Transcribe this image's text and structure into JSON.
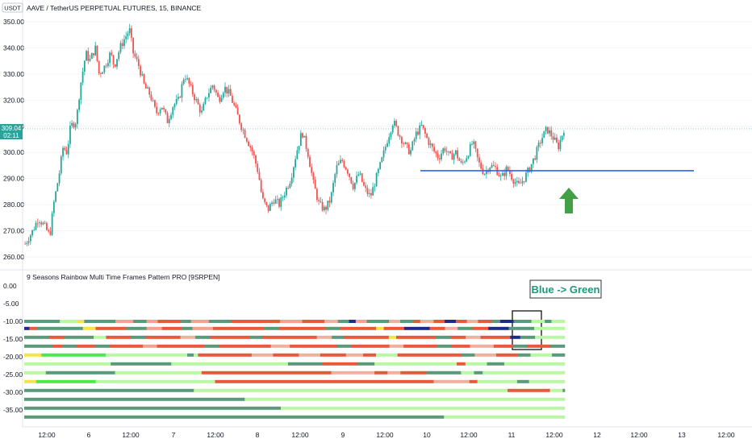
{
  "header": {
    "currency_badge": "USDT",
    "symbol_title": "AAVE / TetherUS PERPETUAL FUTURES, 15, BINANCE"
  },
  "price_tag": {
    "price": "309.04",
    "countdown": "02:11",
    "value": 309.04
  },
  "indicator": {
    "title": "9 Seasons Rainbow Multi Time Frames Pattern PRO [9SRPEN]",
    "callout": "Blue -> Green"
  },
  "annotation": {
    "support_level": 293,
    "arrow": "up-arrow-icon"
  },
  "colors": {
    "up_candle": "#26a69a",
    "down_candle": "#ef5350",
    "support_line": "#2962ff",
    "arrow": "#43a047",
    "callout_text": "#1a9a7c",
    "price_line": "#26a69a",
    "bar_palette": {
      "G": "#7fdd7f",
      "g": "#baf7a5",
      "T": "#5a9a7a",
      "R": "#e8583a",
      "r": "#f5a090",
      "S": "#f0b0a0",
      "N": "#1c2a8a",
      "Y": "#f5e34a",
      "B": "#4de84d"
    }
  },
  "chart_data": [
    {
      "type": "candlestick",
      "title": "AAVE / TetherUS PERPETUAL FUTURES, 15, BINANCE",
      "ylim": [
        255,
        352
      ],
      "y_ticks": [
        "350.00",
        "340.00",
        "330.00",
        "320.00",
        "310.00",
        "300.00",
        "290.00",
        "280.00",
        "270.00",
        "260.00"
      ],
      "x_ticks": [
        "12:00",
        "6",
        "12:00",
        "7",
        "12:00",
        "8",
        "12:00",
        "9",
        "12:00",
        "10",
        "12:00",
        "11",
        "12:00",
        "12",
        "12:00",
        "12:00",
        "13",
        "12:00"
      ],
      "close_path": [
        [
          0,
          265
        ],
        [
          4,
          270
        ],
        [
          7,
          275
        ],
        [
          10,
          272
        ],
        [
          13,
          268
        ],
        [
          15,
          280
        ],
        [
          18,
          292
        ],
        [
          20,
          302
        ],
        [
          22,
          300
        ],
        [
          24,
          310
        ],
        [
          27,
          312
        ],
        [
          29,
          325
        ],
        [
          32,
          338
        ],
        [
          34,
          335
        ],
        [
          37,
          340
        ],
        [
          39,
          330
        ],
        [
          42,
          333
        ],
        [
          45,
          338
        ],
        [
          47,
          333
        ],
        [
          50,
          340
        ],
        [
          52,
          343
        ],
        [
          55,
          347
        ],
        [
          57,
          338
        ],
        [
          60,
          333
        ],
        [
          63,
          325
        ],
        [
          66,
          322
        ],
        [
          69,
          315
        ],
        [
          72,
          318
        ],
        [
          75,
          312
        ],
        [
          78,
          318
        ],
        [
          81,
          320
        ],
        [
          84,
          330
        ],
        [
          87,
          325
        ],
        [
          90,
          320
        ],
        [
          93,
          315
        ],
        [
          96,
          322
        ],
        [
          99,
          326
        ],
        [
          102,
          320
        ],
        [
          105,
          325
        ],
        [
          108,
          322
        ],
        [
          111,
          316
        ],
        [
          114,
          310
        ],
        [
          117,
          305
        ],
        [
          120,
          300
        ],
        [
          123,
          292
        ],
        [
          125,
          282
        ],
        [
          128,
          278
        ],
        [
          131,
          282
        ],
        [
          134,
          280
        ],
        [
          137,
          285
        ],
        [
          140,
          290
        ],
        [
          143,
          300
        ],
        [
          146,
          308
        ],
        [
          149,
          300
        ],
        [
          152,
          288
        ],
        [
          155,
          280
        ],
        [
          158,
          278
        ],
        [
          161,
          282
        ],
        [
          164,
          294
        ],
        [
          167,
          297
        ],
        [
          170,
          293
        ],
        [
          173,
          287
        ],
        [
          176,
          292
        ],
        [
          179,
          286
        ],
        [
          182,
          283
        ],
        [
          185,
          290
        ],
        [
          188,
          297
        ],
        [
          191,
          305
        ],
        [
          194,
          312
        ],
        [
          197,
          307
        ],
        [
          200,
          303
        ],
        [
          203,
          300
        ],
        [
          206,
          307
        ],
        [
          209,
          310
        ],
        [
          212,
          305
        ],
        [
          215,
          301
        ],
        [
          218,
          298
        ],
        [
          221,
          302
        ],
        [
          224,
          298
        ],
        [
          227,
          300
        ],
        [
          230,
          295
        ],
        [
          233,
          299
        ],
        [
          236,
          304
        ],
        [
          239,
          296
        ],
        [
          242,
          292
        ],
        [
          245,
          295
        ],
        [
          248,
          294
        ],
        [
          251,
          290
        ],
        [
          254,
          294
        ],
        [
          257,
          290
        ],
        [
          260,
          287
        ],
        [
          263,
          290
        ],
        [
          266,
          294
        ],
        [
          269,
          299
        ],
        [
          272,
          305
        ],
        [
          275,
          309
        ],
        [
          278,
          306
        ],
        [
          281,
          302
        ],
        [
          284,
          309
        ]
      ],
      "close_path_x_range": [
        0,
        284
      ]
    },
    {
      "type": "heatmap",
      "title": "9 Seasons Rainbow Multi Time Frames Pattern PRO [9SRPEN]",
      "ylim": [
        -38,
        2
      ],
      "y_ticks": [
        "0.00",
        "-5.00",
        "-10.00",
        "-15.00",
        "-20.00",
        "-25.00",
        "-30.00",
        "-35.00"
      ],
      "rows": [
        {
          "level": -10,
          "segments": [
            [
              "T",
              16
            ],
            [
              "g",
              8
            ],
            [
              "Y",
              3
            ],
            [
              "T",
              14
            ],
            [
              "r",
              8
            ],
            [
              "T",
              6
            ],
            [
              "r",
              5
            ],
            [
              "R",
              10
            ],
            [
              "T",
              5
            ],
            [
              "r",
              8
            ],
            [
              "T",
              10
            ],
            [
              "R",
              22
            ],
            [
              "r",
              10
            ],
            [
              "R",
              10
            ],
            [
              "S",
              6
            ],
            [
              "T",
              5
            ],
            [
              "N",
              3
            ],
            [
              "r",
              5
            ],
            [
              "T",
              10
            ],
            [
              "S",
              5
            ],
            [
              "T",
              6
            ],
            [
              "R",
              3
            ],
            [
              "S",
              6
            ],
            [
              "R",
              5
            ],
            [
              "N",
              5
            ],
            [
              "R",
              5
            ],
            [
              "S",
              5
            ],
            [
              "R",
              6
            ],
            [
              "T",
              4
            ],
            [
              "N",
              6
            ],
            [
              "T",
              8
            ],
            [
              "g",
              6
            ],
            [
              "T",
              3
            ],
            [
              "g",
              6
            ]
          ]
        },
        {
          "level": -12,
          "segments": [
            [
              "N",
              2
            ],
            [
              "R",
              3
            ],
            [
              "T",
              18
            ],
            [
              "Y",
              5
            ],
            [
              "R",
              12
            ],
            [
              "T",
              8
            ],
            [
              "r",
              6
            ],
            [
              "R",
              8
            ],
            [
              "T",
              4
            ],
            [
              "r",
              8
            ],
            [
              "R",
              20
            ],
            [
              "T",
              6
            ],
            [
              "R",
              18
            ],
            [
              "T",
              6
            ],
            [
              "R",
              14
            ],
            [
              "Y",
              3
            ],
            [
              "R",
              8
            ],
            [
              "N",
              10
            ],
            [
              "R",
              6
            ],
            [
              "S",
              5
            ],
            [
              "T",
              6
            ],
            [
              "R",
              6
            ],
            [
              "N",
              8
            ],
            [
              "T",
              10
            ],
            [
              "g",
              12
            ]
          ]
        },
        {
          "level": -14.5,
          "segments": [
            [
              "T",
              10
            ],
            [
              "R",
              6
            ],
            [
              "T",
              12
            ],
            [
              "g",
              5
            ],
            [
              "R",
              10
            ],
            [
              "T",
              6
            ],
            [
              "R",
              14
            ],
            [
              "S",
              6
            ],
            [
              "T",
              6
            ],
            [
              "R",
              16
            ],
            [
              "T",
              5
            ],
            [
              "R",
              22
            ],
            [
              "S",
              6
            ],
            [
              "T",
              5
            ],
            [
              "R",
              18
            ],
            [
              "Y",
              3
            ],
            [
              "R",
              16
            ],
            [
              "T",
              6
            ],
            [
              "R",
              6
            ],
            [
              "S",
              6
            ],
            [
              "R",
              12
            ],
            [
              "N",
              4
            ],
            [
              "T",
              6
            ],
            [
              "g",
              12
            ]
          ]
        },
        {
          "level": -17,
          "segments": [
            [
              "T",
              12
            ],
            [
              "R",
              4
            ],
            [
              "T",
              6
            ],
            [
              "R",
              8
            ],
            [
              "T",
              6
            ],
            [
              "R",
              14
            ],
            [
              "r",
              6
            ],
            [
              "R",
              20
            ],
            [
              "T",
              6
            ],
            [
              "R",
              22
            ],
            [
              "S",
              8
            ],
            [
              "R",
              20
            ],
            [
              "T",
              6
            ],
            [
              "R",
              16
            ],
            [
              "S",
              6
            ],
            [
              "R",
              14
            ],
            [
              "T",
              6
            ],
            [
              "R",
              8
            ],
            [
              "S",
              10
            ],
            [
              "R",
              8
            ],
            [
              "T",
              6
            ],
            [
              "R",
              10
            ],
            [
              "T",
              6
            ]
          ]
        },
        {
          "level": -19.5,
          "segments": [
            [
              "Y",
              8
            ],
            [
              "B",
              30
            ],
            [
              "g",
              38
            ],
            [
              "T",
              3
            ],
            [
              "g",
              2
            ],
            [
              "R",
              25
            ],
            [
              "S",
              10
            ],
            [
              "R",
              12
            ],
            [
              "S",
              10
            ],
            [
              "R",
              12
            ],
            [
              "S",
              8
            ],
            [
              "R",
              6
            ],
            [
              "g",
              10
            ],
            [
              "R",
              30
            ],
            [
              "T",
              6
            ],
            [
              "S",
              10
            ],
            [
              "R",
              10
            ],
            [
              "T",
              6
            ],
            [
              "g",
              10
            ],
            [
              "T",
              6
            ]
          ]
        },
        {
          "level": -22,
          "segments": [
            [
              "g",
              40
            ],
            [
              "T",
              28
            ],
            [
              "g",
              54
            ],
            [
              "T",
              16
            ],
            [
              "R",
              16
            ],
            [
              "T",
              8
            ],
            [
              "g",
              38
            ],
            [
              "R",
              4
            ],
            [
              "g",
              10
            ],
            [
              "T",
              8
            ],
            [
              "g",
              28
            ]
          ]
        },
        {
          "level": -24.5,
          "segments": [
            [
              "g",
              10
            ],
            [
              "T",
              32
            ],
            [
              "g",
              40
            ],
            [
              "R",
              60
            ],
            [
              "S",
              20
            ],
            [
              "R",
              6
            ],
            [
              "S",
              6
            ],
            [
              "R",
              12
            ],
            [
              "T",
              16
            ],
            [
              "g",
              6
            ],
            [
              "T",
              4
            ],
            [
              "g",
              4
            ],
            [
              "g",
              34
            ]
          ]
        },
        {
          "level": -27,
          "segments": [
            [
              "Y",
              6
            ],
            [
              "B",
              30
            ],
            [
              "g",
              60
            ],
            [
              "R",
              110
            ],
            [
              "S",
              18
            ],
            [
              "R",
              4
            ],
            [
              "g",
              20
            ],
            [
              "T",
              6
            ],
            [
              "g",
              18
            ]
          ]
        },
        {
          "level": -29.5,
          "segments": [
            [
              "T",
              80
            ],
            [
              "g",
              148
            ],
            [
              "R",
              20
            ],
            [
              "g",
              6
            ],
            [
              "T",
              1
            ]
          ]
        },
        {
          "level": -32,
          "segments": [
            [
              "T",
              104
            ],
            [
              "g",
              151
            ]
          ]
        },
        {
          "level": -34.5,
          "segments": [
            [
              "T",
              121
            ],
            [
              "g",
              134
            ]
          ]
        },
        {
          "level": -37,
          "segments": [
            [
              "T",
              198
            ],
            [
              "g",
              57
            ]
          ]
        }
      ]
    }
  ]
}
